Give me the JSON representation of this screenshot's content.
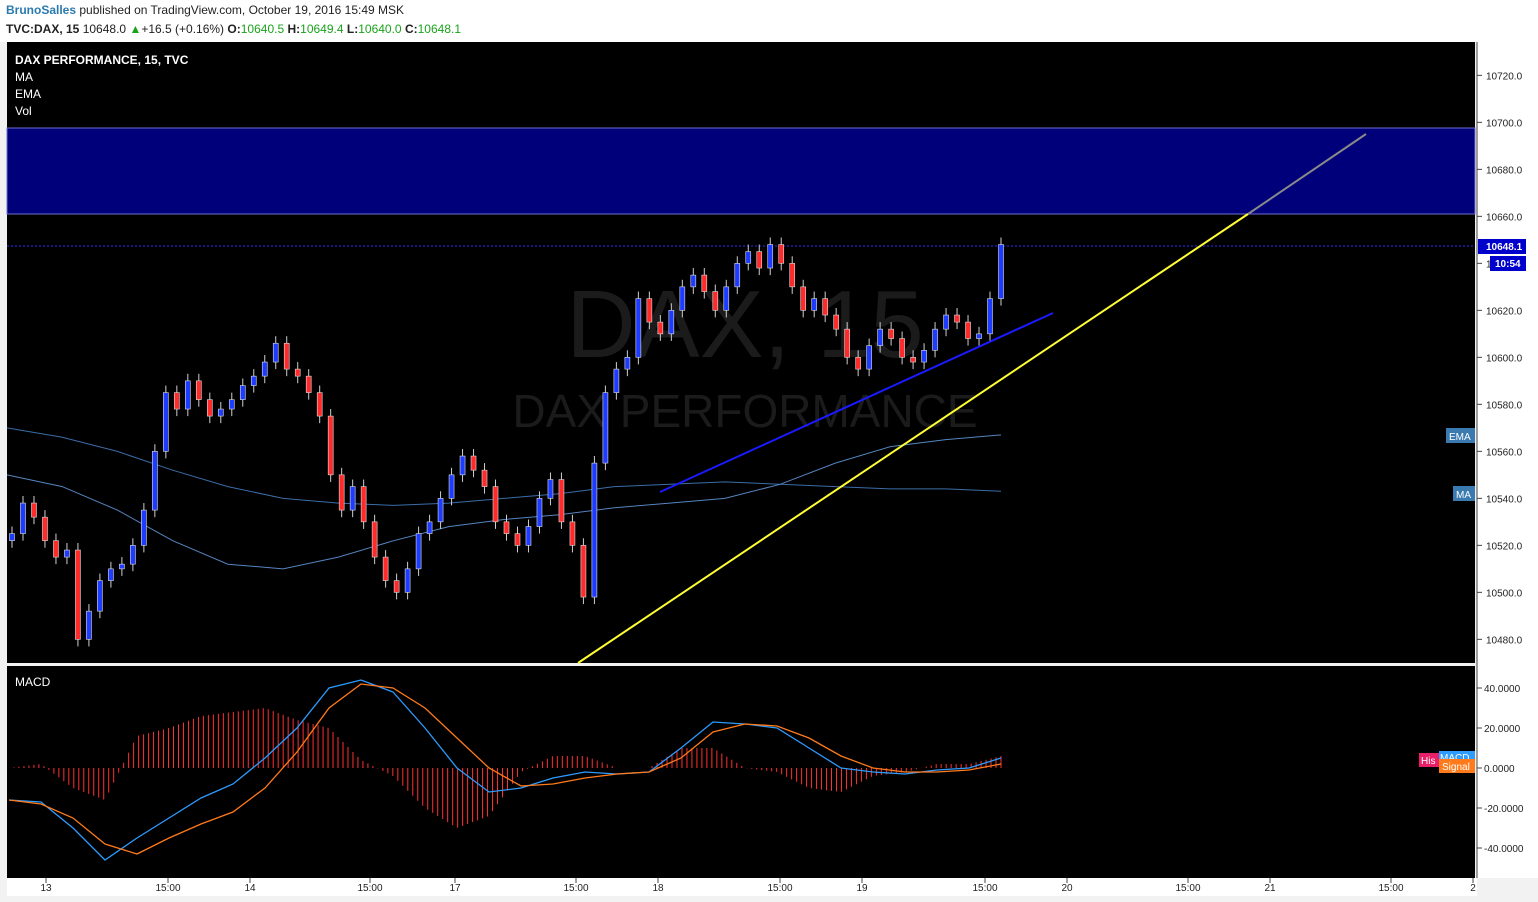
{
  "header": {
    "author": "BrunoSalles",
    "published_text": "published on TradingView.com, October 19, 2016 15:49 MSK",
    "symbol": "TVC:DAX, 15",
    "last_price": "10648.0",
    "change_arrow": "▲",
    "change": "+16.5 (+0.16%)",
    "o_label": "O:",
    "o_value": "10640.5",
    "h_label": "H:",
    "h_value": "10649.4",
    "l_label": "L:",
    "l_value": "10640.0",
    "c_label": "C:",
    "c_value": "10648.1"
  },
  "legend": {
    "title": "DAX PERFORMANCE, 15, TVC",
    "indicators": [
      "MA",
      "EMA",
      "Vol"
    ]
  },
  "watermark": {
    "big": "DAX, 15",
    "small": "DAX PERFORMANCE"
  },
  "price_axis": {
    "ticks": [
      "10720.0",
      "10700.0",
      "10680.0",
      "10660.0",
      "10640.0",
      "10620.0",
      "10600.0",
      "10580.0",
      "10560.0",
      "10540.0",
      "10520.0",
      "10500.0",
      "10480.0"
    ],
    "last_price_badge": "10648.1",
    "countdown_badge": "10:54",
    "ema_badge": "EMA",
    "ma_badge": "MA"
  },
  "macd_panel": {
    "title": "MACD",
    "ticks": [
      "40.0000",
      "20.0000",
      "0.0000",
      "-20.0000",
      "-40.0000"
    ],
    "hist_badge": "His",
    "macd_badge": "MACD",
    "signal_badge": "Signal"
  },
  "time_axis": {
    "labels": [
      "13",
      "15:00",
      "14",
      "15:00",
      "17",
      "15:00",
      "18",
      "15:00",
      "19",
      "15:00",
      "20",
      "15:00",
      "21",
      "15:00",
      "2"
    ]
  },
  "colors": {
    "up_candle": "#1e3cff",
    "down_candle": "#ff2a2a",
    "resistance_zone": "#00007a",
    "support_trendline": "#ffff33",
    "short_trendline": "#1a1aff",
    "ma_line": "#3a6da8",
    "ema_line": "#5585c0",
    "macd_line": "#2e9bff",
    "signal_line": "#ff7a1a",
    "histogram": "#ff3030"
  },
  "chart_data": [
    {
      "type": "candlestick",
      "title": "DAX PERFORMANCE, 15, TVC",
      "ylim": [
        10470,
        10730
      ],
      "resistance_zone": [
        10661,
        10698
      ],
      "candles_close_path": [
        10525,
        10538,
        10532,
        10522,
        10515,
        10518,
        10480,
        10492,
        10505,
        10510,
        10512,
        10520,
        10535,
        10560,
        10585,
        10578,
        10590,
        10582,
        10575,
        10578,
        10582,
        10588,
        10592,
        10598,
        10606,
        10595,
        10592,
        10585,
        10575,
        10550,
        10535,
        10545,
        10530,
        10515,
        10505,
        10500,
        10510,
        10525,
        10530,
        10540,
        10550,
        10558,
        10552,
        10545,
        10530,
        10525,
        10520,
        10528,
        10540,
        10548,
        10530,
        10520,
        10498,
        10555,
        10585,
        10595,
        10600,
        10625,
        10615,
        10610,
        10620,
        10630,
        10635,
        10628,
        10620,
        10630,
        10640,
        10645,
        10638,
        10648,
        10640,
        10630,
        10620,
        10625,
        10618,
        10612,
        10600,
        10595,
        10605,
        10612,
        10608,
        10600,
        10598,
        10603,
        10612,
        10618,
        10615,
        10608,
        10610,
        10625,
        10648
      ],
      "series": [
        {
          "name": "MA",
          "values": [
            10570,
            10566,
            10560,
            10552,
            10545,
            10540,
            10538,
            10537,
            10538,
            10540,
            10542,
            10545,
            10546,
            10547,
            10546,
            10545,
            10544,
            10544,
            10543
          ]
        },
        {
          "name": "EMA",
          "values": [
            10550,
            10545,
            10535,
            10522,
            10512,
            10510,
            10515,
            10522,
            10528,
            10531,
            10533,
            10536,
            10538,
            10540,
            10546,
            10555,
            10562,
            10565,
            10567
          ]
        }
      ]
    },
    {
      "type": "line",
      "title": "MACD",
      "ylim": [
        -50,
        45
      ],
      "series": [
        {
          "name": "MACD",
          "values": [
            -16,
            -17,
            -30,
            -46,
            -35,
            -25,
            -15,
            -8,
            5,
            20,
            40,
            44,
            38,
            20,
            0,
            -12,
            -10,
            -5,
            -2,
            -3,
            -2,
            10,
            23,
            22,
            20,
            10,
            0,
            -2,
            -3,
            -1,
            0,
            5
          ]
        },
        {
          "name": "Signal",
          "values": [
            -16,
            -18,
            -25,
            -38,
            -43,
            -35,
            -28,
            -22,
            -10,
            8,
            30,
            42,
            40,
            30,
            15,
            0,
            -9,
            -8,
            -5,
            -3,
            -2,
            5,
            18,
            22,
            21,
            15,
            6,
            0,
            -2,
            -2,
            -1,
            2
          ]
        }
      ]
    }
  ]
}
